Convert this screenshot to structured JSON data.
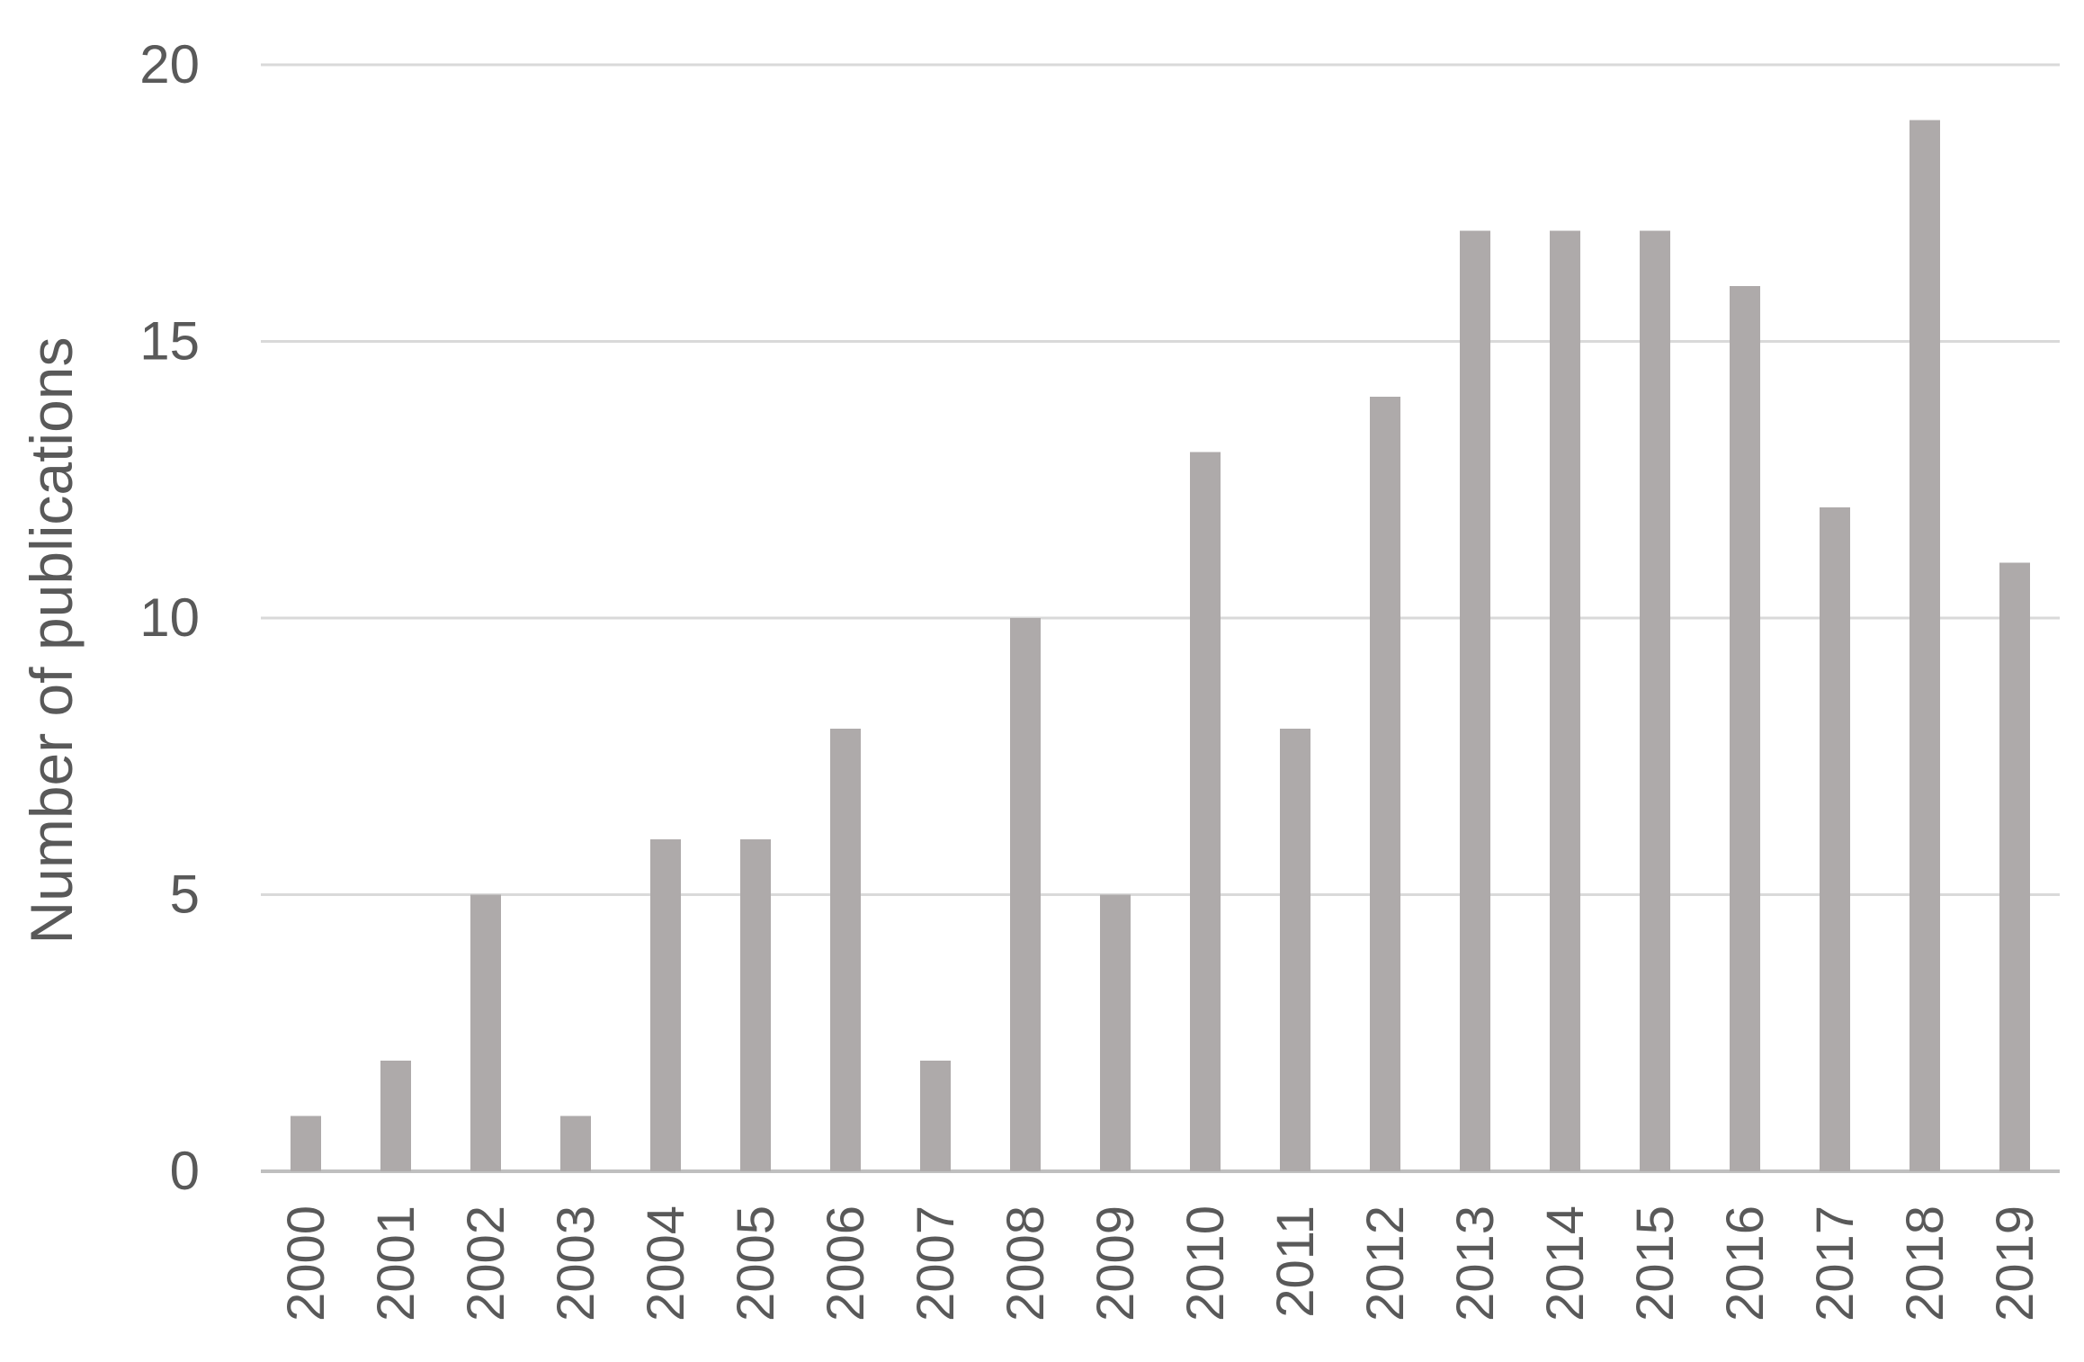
{
  "chart_data": {
    "type": "bar",
    "title": "",
    "xlabel": "",
    "ylabel": "Number of publications",
    "categories": [
      "2000",
      "2001",
      "2002",
      "2003",
      "2004",
      "2005",
      "2006",
      "2007",
      "2008",
      "2009",
      "2010",
      "2011",
      "2012",
      "2013",
      "2014",
      "2015",
      "2016",
      "2017",
      "2018",
      "2019"
    ],
    "values": [
      1,
      2,
      5,
      1,
      6,
      6,
      8,
      2,
      10,
      5,
      13,
      8,
      14,
      17,
      17,
      17,
      16,
      12,
      19,
      11
    ],
    "ylim": [
      0,
      20
    ],
    "yticks": [
      0,
      5,
      10,
      15,
      20
    ],
    "grid": true,
    "colors": {
      "bar": "#aeaaaa",
      "grid": "#d9d9d9",
      "text": "#595959"
    }
  }
}
